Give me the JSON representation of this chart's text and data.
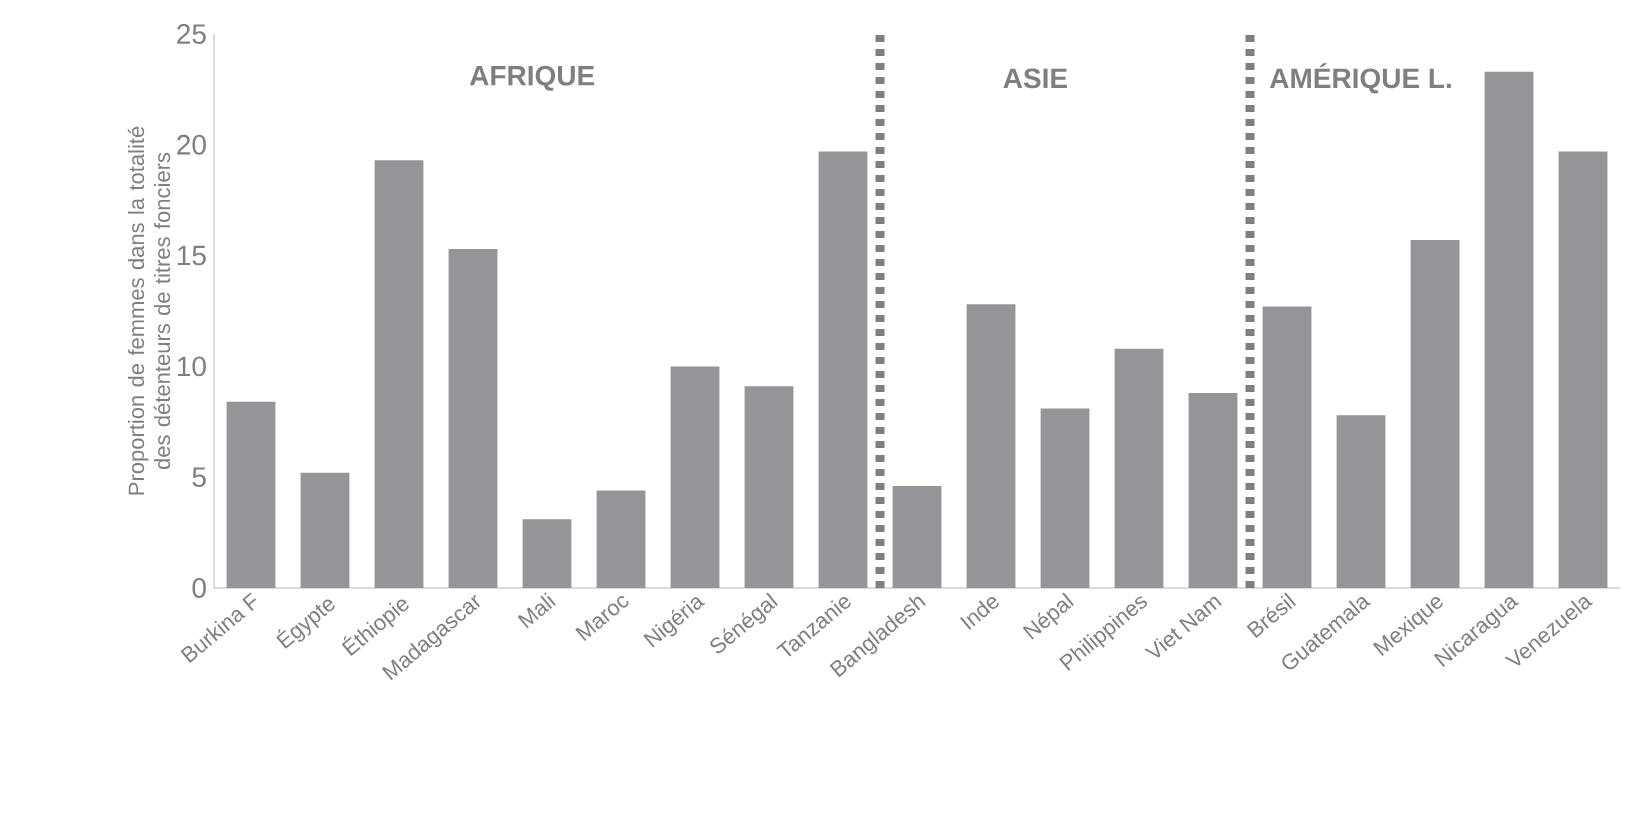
{
  "chart_data": {
    "type": "bar",
    "ylabel": "Proportion de femmes dans la totalité des détenteurs de titres fonciers",
    "categories": [
      "Burkina F",
      "Égypte",
      "Éthiopie",
      "Madagascar",
      "Mali",
      "Maroc",
      "Nigéria",
      "Sénégal",
      "Tanzanie",
      "Bangladesh",
      "Inde",
      "Népal",
      "Philippines",
      "Viet Nam",
      "Brésil",
      "Guatemala",
      "Mexique",
      "Nicaragua",
      "Venezuela"
    ],
    "values": [
      8.4,
      5.2,
      19.3,
      15.3,
      3.1,
      4.4,
      10.0,
      9.1,
      19.7,
      4.6,
      12.8,
      8.1,
      10.8,
      8.8,
      12.7,
      7.8,
      15.7,
      23.3,
      19.7
    ],
    "color": "#939598",
    "ylim": [
      0,
      25
    ],
    "yticks": [
      0,
      5,
      10,
      15,
      20,
      25
    ],
    "annotations": [
      "AFRIQUE",
      "ASIE",
      "AMÉRIQUE L."
    ]
  }
}
